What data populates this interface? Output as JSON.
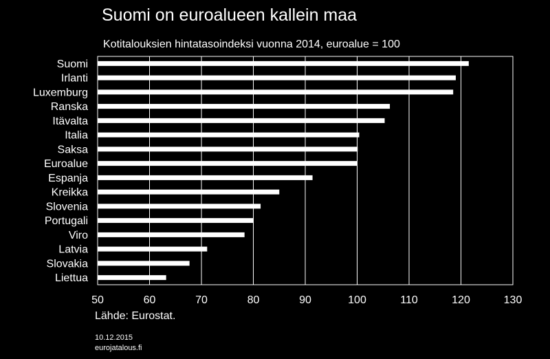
{
  "colors": {
    "background": "#000000",
    "text": "#ffffff",
    "bar": "#ffffff",
    "grid": "#ffffff"
  },
  "chart_data": {
    "type": "bar",
    "orientation": "horizontal",
    "title": "Suomi on euroalueen kallein maa",
    "subtitle": "Kotitalouksien hintatasoindeksi vuonna 2014, euroalue = 100",
    "categories": [
      "Suomi",
      "Irlanti",
      "Luxemburg",
      "Ranska",
      "Itävalta",
      "Italia",
      "Saksa",
      "Euroalue",
      "Espanja",
      "Kreikka",
      "Slovenia",
      "Portugali",
      "Viro",
      "Latvia",
      "Slovakia",
      "Liettua"
    ],
    "values": [
      121.5,
      119,
      118.5,
      106.3,
      105.3,
      100.4,
      100.1,
      100,
      91.4,
      85,
      81.4,
      80,
      78.3,
      71.1,
      67.7,
      63.2
    ],
    "xlim": [
      50,
      130
    ],
    "xticks": [
      "50",
      "60",
      "70",
      "80",
      "90",
      "100",
      "110",
      "120",
      "130"
    ],
    "grid": true,
    "source": "Lähde: Eurostat.",
    "date": "10.12.2015",
    "website": "eurojatalous.fi"
  }
}
